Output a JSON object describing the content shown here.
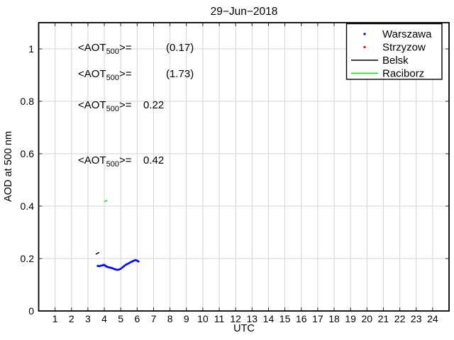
{
  "figure": {
    "title": "29−Jun−2018",
    "xlabel": "UTC",
    "ylabel": "AOD at 500 nm"
  },
  "annotations": [
    {
      "station": "Warszawa",
      "pre": "<AOT",
      "sub": "500",
      "mid": ">=",
      "value": "(0.17)",
      "color": "#0000ff"
    },
    {
      "station": "Strzyzow",
      "pre": "<AOT",
      "sub": "500",
      "mid": ">=",
      "value": "(1.73)",
      "color": "#ff0000"
    },
    {
      "station": "Belsk",
      "pre": "<AOT",
      "sub": "500",
      "mid": ">=",
      "value": "0.22",
      "color": "#000000"
    },
    {
      "station": "Raciborz",
      "pre": "<AOT",
      "sub": "500",
      "mid": ">=",
      "value": "0.42",
      "color": "#00e408"
    }
  ],
  "legend": {
    "items": [
      {
        "label": "Warszawa",
        "marker": "dot",
        "color": "#0000ff"
      },
      {
        "label": "Strzyzow",
        "marker": "dot",
        "color": "#ff0000"
      },
      {
        "label": "Belsk",
        "marker": "line",
        "color": "#000000"
      },
      {
        "label": "Raciborz",
        "marker": "line",
        "color": "#00e408"
      }
    ]
  },
  "chart_data": {
    "type": "scatter",
    "title": "29−Jun−2018",
    "xlabel": "UTC",
    "ylabel": "AOD at 500 nm",
    "xlim": [
      0,
      25
    ],
    "ylim": [
      0,
      1.1
    ],
    "xticks": [
      1,
      2,
      3,
      4,
      5,
      6,
      7,
      8,
      9,
      10,
      11,
      12,
      13,
      14,
      15,
      16,
      17,
      18,
      19,
      20,
      21,
      22,
      23,
      24
    ],
    "yticks": [
      0,
      0.2,
      0.4,
      0.6,
      0.8,
      1
    ],
    "ytick_labels": [
      "0",
      "0.2",
      "0.4",
      "0.6",
      "0.8",
      "1"
    ],
    "grid": true,
    "legend_position": "top-right",
    "series": [
      {
        "name": "Warszawa",
        "color": "#0000ff",
        "style": "dots",
        "mean_aot500": "(0.17)",
        "points": [
          [
            3.6,
            0.172
          ],
          [
            3.7,
            0.171
          ],
          [
            3.8,
            0.173
          ],
          [
            3.9,
            0.174
          ],
          [
            3.98,
            0.176
          ],
          [
            4.05,
            0.173
          ],
          [
            4.12,
            0.17
          ],
          [
            4.2,
            0.168
          ],
          [
            4.3,
            0.166
          ],
          [
            4.4,
            0.165
          ],
          [
            4.5,
            0.163
          ],
          [
            4.6,
            0.16
          ],
          [
            4.7,
            0.158
          ],
          [
            4.8,
            0.157
          ],
          [
            4.9,
            0.158
          ],
          [
            5.0,
            0.161
          ],
          [
            5.1,
            0.166
          ],
          [
            5.2,
            0.171
          ],
          [
            5.3,
            0.176
          ],
          [
            5.4,
            0.179
          ],
          [
            5.5,
            0.182
          ],
          [
            5.6,
            0.186
          ],
          [
            5.7,
            0.189
          ],
          [
            5.8,
            0.192
          ],
          [
            5.9,
            0.194
          ],
          [
            6.0,
            0.192
          ],
          [
            6.08,
            0.189
          ]
        ]
      },
      {
        "name": "Strzyzow",
        "color": "#ff0000",
        "style": "dots",
        "mean_aot500": "(1.73)",
        "points": []
      },
      {
        "name": "Belsk",
        "color": "#000000",
        "style": "line",
        "mean_aot500": "0.22",
        "points": [
          [
            3.5,
            0.217
          ],
          [
            3.58,
            0.22
          ],
          [
            3.67,
            0.223
          ]
        ]
      },
      {
        "name": "Raciborz",
        "color": "#00e408",
        "style": "line",
        "mean_aot500": "0.42",
        "points": [
          [
            4.02,
            0.418
          ],
          [
            4.15,
            0.421
          ]
        ]
      }
    ]
  }
}
